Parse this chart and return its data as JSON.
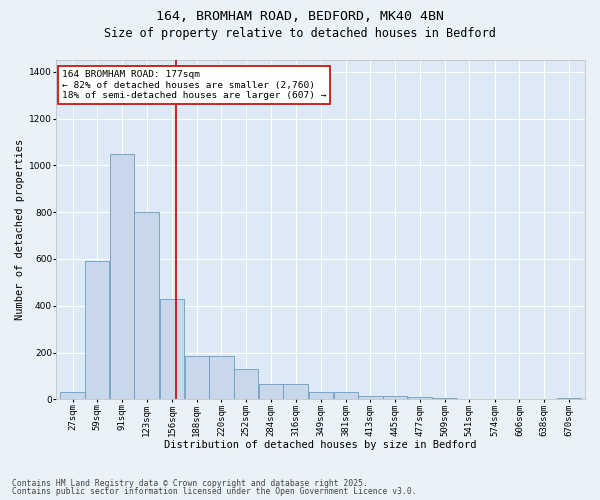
{
  "title_line1": "164, BROMHAM ROAD, BEDFORD, MK40 4BN",
  "title_line2": "Size of property relative to detached houses in Bedford",
  "xlabel": "Distribution of detached houses by size in Bedford",
  "ylabel": "Number of detached properties",
  "bar_color": "#c8d8ea",
  "bar_edge_color": "#6a9cbf",
  "background_color": "#ddeaf5",
  "fig_background_color": "#eaf2f8",
  "grid_color": "#ffffff",
  "annotation_text_line1": "164 BROMHAM ROAD: 177sqm",
  "annotation_text_line2": "← 82% of detached houses are smaller (2,760)",
  "annotation_text_line3": "18% of semi-detached houses are larger (607) →",
  "annotation_box_color": "#cc0000",
  "red_line_x": 177,
  "categories": [
    "27sqm",
    "59sqm",
    "91sqm",
    "123sqm",
    "156sqm",
    "188sqm",
    "220sqm",
    "252sqm",
    "284sqm",
    "316sqm",
    "349sqm",
    "381sqm",
    "413sqm",
    "445sqm",
    "477sqm",
    "509sqm",
    "541sqm",
    "574sqm",
    "606sqm",
    "638sqm",
    "670sqm"
  ],
  "bin_starts": [
    27,
    59,
    91,
    123,
    156,
    188,
    220,
    252,
    284,
    316,
    349,
    381,
    413,
    445,
    477,
    509,
    541,
    574,
    606,
    638,
    670
  ],
  "bin_width": 32,
  "values": [
    30,
    590,
    1050,
    800,
    430,
    185,
    185,
    130,
    65,
    65,
    30,
    30,
    15,
    15,
    10,
    5,
    2,
    2,
    2,
    2,
    5
  ],
  "ylim": [
    0,
    1450
  ],
  "yticks": [
    0,
    200,
    400,
    600,
    800,
    1000,
    1200,
    1400
  ],
  "footer_line1": "Contains HM Land Registry data © Crown copyright and database right 2025.",
  "footer_line2": "Contains public sector information licensed under the Open Government Licence v3.0.",
  "title_fontsize": 9.5,
  "subtitle_fontsize": 8.5,
  "axis_label_fontsize": 7.5,
  "tick_fontsize": 6.5,
  "annotation_fontsize": 6.8,
  "footer_fontsize": 5.8
}
